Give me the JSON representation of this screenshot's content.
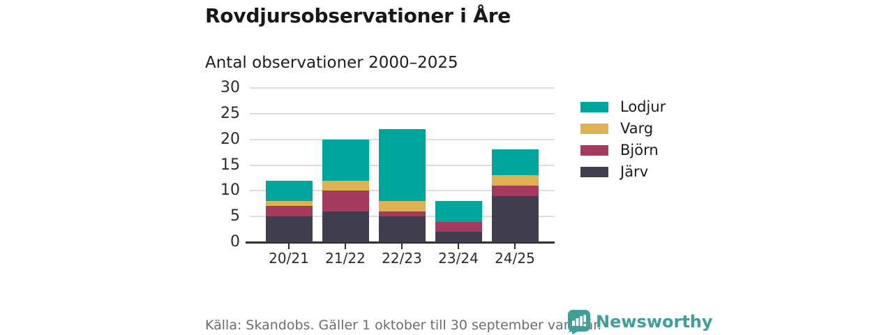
{
  "header": {
    "title": "Rovdjursobservationer i Åre",
    "subtitle": "Antal observationer 2000–2025"
  },
  "chart_data": {
    "type": "bar",
    "stacked": true,
    "title": "Rovdjursobservationer i Åre",
    "subtitle": "Antal observationer 2000–2025",
    "categories": [
      "20/21",
      "21/22",
      "22/23",
      "23/24",
      "24/25"
    ],
    "series": [
      {
        "name": "Järv",
        "color": "#413e4f",
        "values": [
          5,
          6,
          5,
          2,
          9
        ]
      },
      {
        "name": "Björn",
        "color": "#a43a5e",
        "values": [
          2,
          4,
          1,
          2,
          2
        ]
      },
      {
        "name": "Varg",
        "color": "#ddb154",
        "values": [
          1,
          2,
          2,
          0,
          2
        ]
      },
      {
        "name": "Lodjur",
        "color": "#00a59b",
        "values": [
          4,
          8,
          14,
          4,
          5
        ]
      }
    ],
    "totals": [
      12,
      20,
      22,
      8,
      18
    ],
    "ylim": [
      0,
      30
    ],
    "y_ticks": [
      0,
      5,
      10,
      15,
      20,
      25,
      30
    ],
    "grid": true,
    "legend": {
      "position": "right",
      "order": [
        "Lodjur",
        "Varg",
        "Björn",
        "Järv"
      ]
    }
  },
  "footer": {
    "source": "Källa: Skandobs. Gäller 1 oktober till 30 september varje år.",
    "brand": "Newsworthy"
  },
  "colors": {
    "lodjur": "#00a59b",
    "varg": "#ddb154",
    "bjorn": "#a43a5e",
    "jarv": "#413e4f",
    "brand_teal": "#3f9e97",
    "gridline": "#dddddd",
    "axis": "#2f2f2f",
    "text_dark": "#1a1a1a",
    "text_muted": "#6d6d6d"
  }
}
